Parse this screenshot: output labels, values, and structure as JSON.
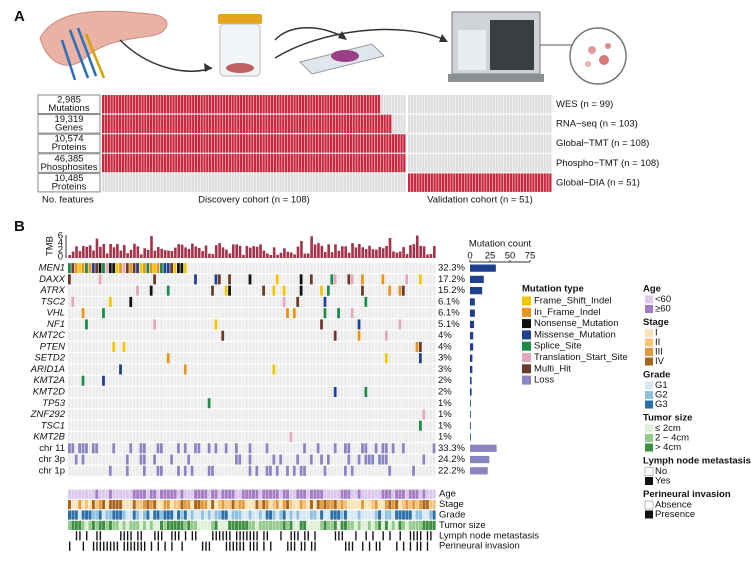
{
  "panel_a": {
    "label": "A",
    "features": [
      {
        "count": "2,985",
        "kind": "Mutations",
        "assay": "WES (n = 99)"
      },
      {
        "count": "19,319",
        "kind": "Genes",
        "assay": "RNA−seq (n = 103)"
      },
      {
        "count": "10,574",
        "kind": "Proteins",
        "assay": "Global−TMT (n = 108)"
      },
      {
        "count": "46,385",
        "kind": "Phosphosites",
        "assay": "Phospho−TMT (n = 108)"
      },
      {
        "count": "10,485",
        "kind": "Proteins",
        "assay": "Global−DIA (n = 51)"
      }
    ],
    "features_label": "No. features",
    "discovery_label": "Discovery cohort (n = 108)",
    "validation_label": "Validation cohort (n = 51)"
  },
  "panel_b": {
    "label": "B",
    "tmb_label": "TMB",
    "tmb_ticks": [
      "6",
      "4",
      "2",
      "0"
    ],
    "mutation_count_label": "Mutation count",
    "mutation_count_ticks": [
      0,
      25,
      50,
      75
    ],
    "rows": [
      {
        "name": "MEN1",
        "pct": 32.3,
        "pct_label": "32.3%"
      },
      {
        "name": "DAXX",
        "pct": 17.2,
        "pct_label": "17.2%"
      },
      {
        "name": "ATRX",
        "pct": 15.2,
        "pct_label": "15.2%"
      },
      {
        "name": "TSC2",
        "pct": 6.1,
        "pct_label": "6.1%"
      },
      {
        "name": "VHL",
        "pct": 6.1,
        "pct_label": "6.1%"
      },
      {
        "name": "NF1",
        "pct": 5.1,
        "pct_label": "5.1%"
      },
      {
        "name": "KMT2C",
        "pct": 4,
        "pct_label": "4%"
      },
      {
        "name": "PTEN",
        "pct": 4,
        "pct_label": "4%"
      },
      {
        "name": "SETD2",
        "pct": 3,
        "pct_label": "3%"
      },
      {
        "name": "ARID1A",
        "pct": 3,
        "pct_label": "3%"
      },
      {
        "name": "KMT2A",
        "pct": 2,
        "pct_label": "2%"
      },
      {
        "name": "KMT2D",
        "pct": 2,
        "pct_label": "2%"
      },
      {
        "name": "TP53",
        "pct": 1,
        "pct_label": "1%"
      },
      {
        "name": "ZNF292",
        "pct": 1,
        "pct_label": "1%"
      },
      {
        "name": "TSC1",
        "pct": 1,
        "pct_label": "1%"
      },
      {
        "name": "KMT2B",
        "pct": 1,
        "pct_label": "1%"
      },
      {
        "name": "chr 11",
        "pct": 33.3,
        "pct_label": "33.3%"
      },
      {
        "name": "chr 3p",
        "pct": 24.2,
        "pct_label": "24.2%"
      },
      {
        "name": "chr 1p",
        "pct": 22.2,
        "pct_label": "22.2%"
      }
    ],
    "mutation_type_title": "Mutation type",
    "mutation_types": [
      {
        "name": "Frame_Shift_Indel",
        "color": "#f2c500"
      },
      {
        "name": "In_Frame_Indel",
        "color": "#e8931e"
      },
      {
        "name": "Nonsense_Mutation",
        "color": "#111111"
      },
      {
        "name": "Missense_Mutation",
        "color": "#1f3f8f"
      },
      {
        "name": "Splice_Site",
        "color": "#1e8a4a"
      },
      {
        "name": "Translation_Start_Site",
        "color": "#e0a8b8"
      },
      {
        "name": "Multi_Hit",
        "color": "#6b3a2a"
      },
      {
        "name": "Loss",
        "color": "#8a85c0"
      }
    ],
    "clinical": [
      {
        "title": "Age",
        "items": [
          {
            "name": "<60",
            "color": "#dcc8ea"
          },
          {
            "name": "≥60",
            "color": "#a27dc4"
          }
        ]
      },
      {
        "title": "Stage",
        "items": [
          {
            "name": "I",
            "color": "#fbe3b8"
          },
          {
            "name": "II",
            "color": "#f5c47a"
          },
          {
            "name": "III",
            "color": "#e39a3c"
          },
          {
            "name": "IV",
            "color": "#a8651e"
          }
        ]
      },
      {
        "title": "Grade",
        "items": [
          {
            "name": "G1",
            "color": "#d6e8f4"
          },
          {
            "name": "G2",
            "color": "#8fc0e0"
          },
          {
            "name": "G3",
            "color": "#2a6fa8"
          }
        ]
      },
      {
        "title": "Tumor size",
        "items": [
          {
            "name": "≤ 2cm",
            "color": "#dff0d8"
          },
          {
            "name": "2 − 4cm",
            "color": "#93c98a"
          },
          {
            "name": "> 4cm",
            "color": "#3e8e41"
          }
        ]
      },
      {
        "title": "Lymph node metastasis",
        "items": [
          {
            "name": "No",
            "color": "#ffffff"
          },
          {
            "name": "Yes",
            "color": "#111111"
          }
        ]
      },
      {
        "title": "Perineural invasion",
        "items": [
          {
            "name": "Absence",
            "color": "#ffffff"
          },
          {
            "name": "Presence",
            "color": "#111111"
          }
        ]
      }
    ]
  }
}
